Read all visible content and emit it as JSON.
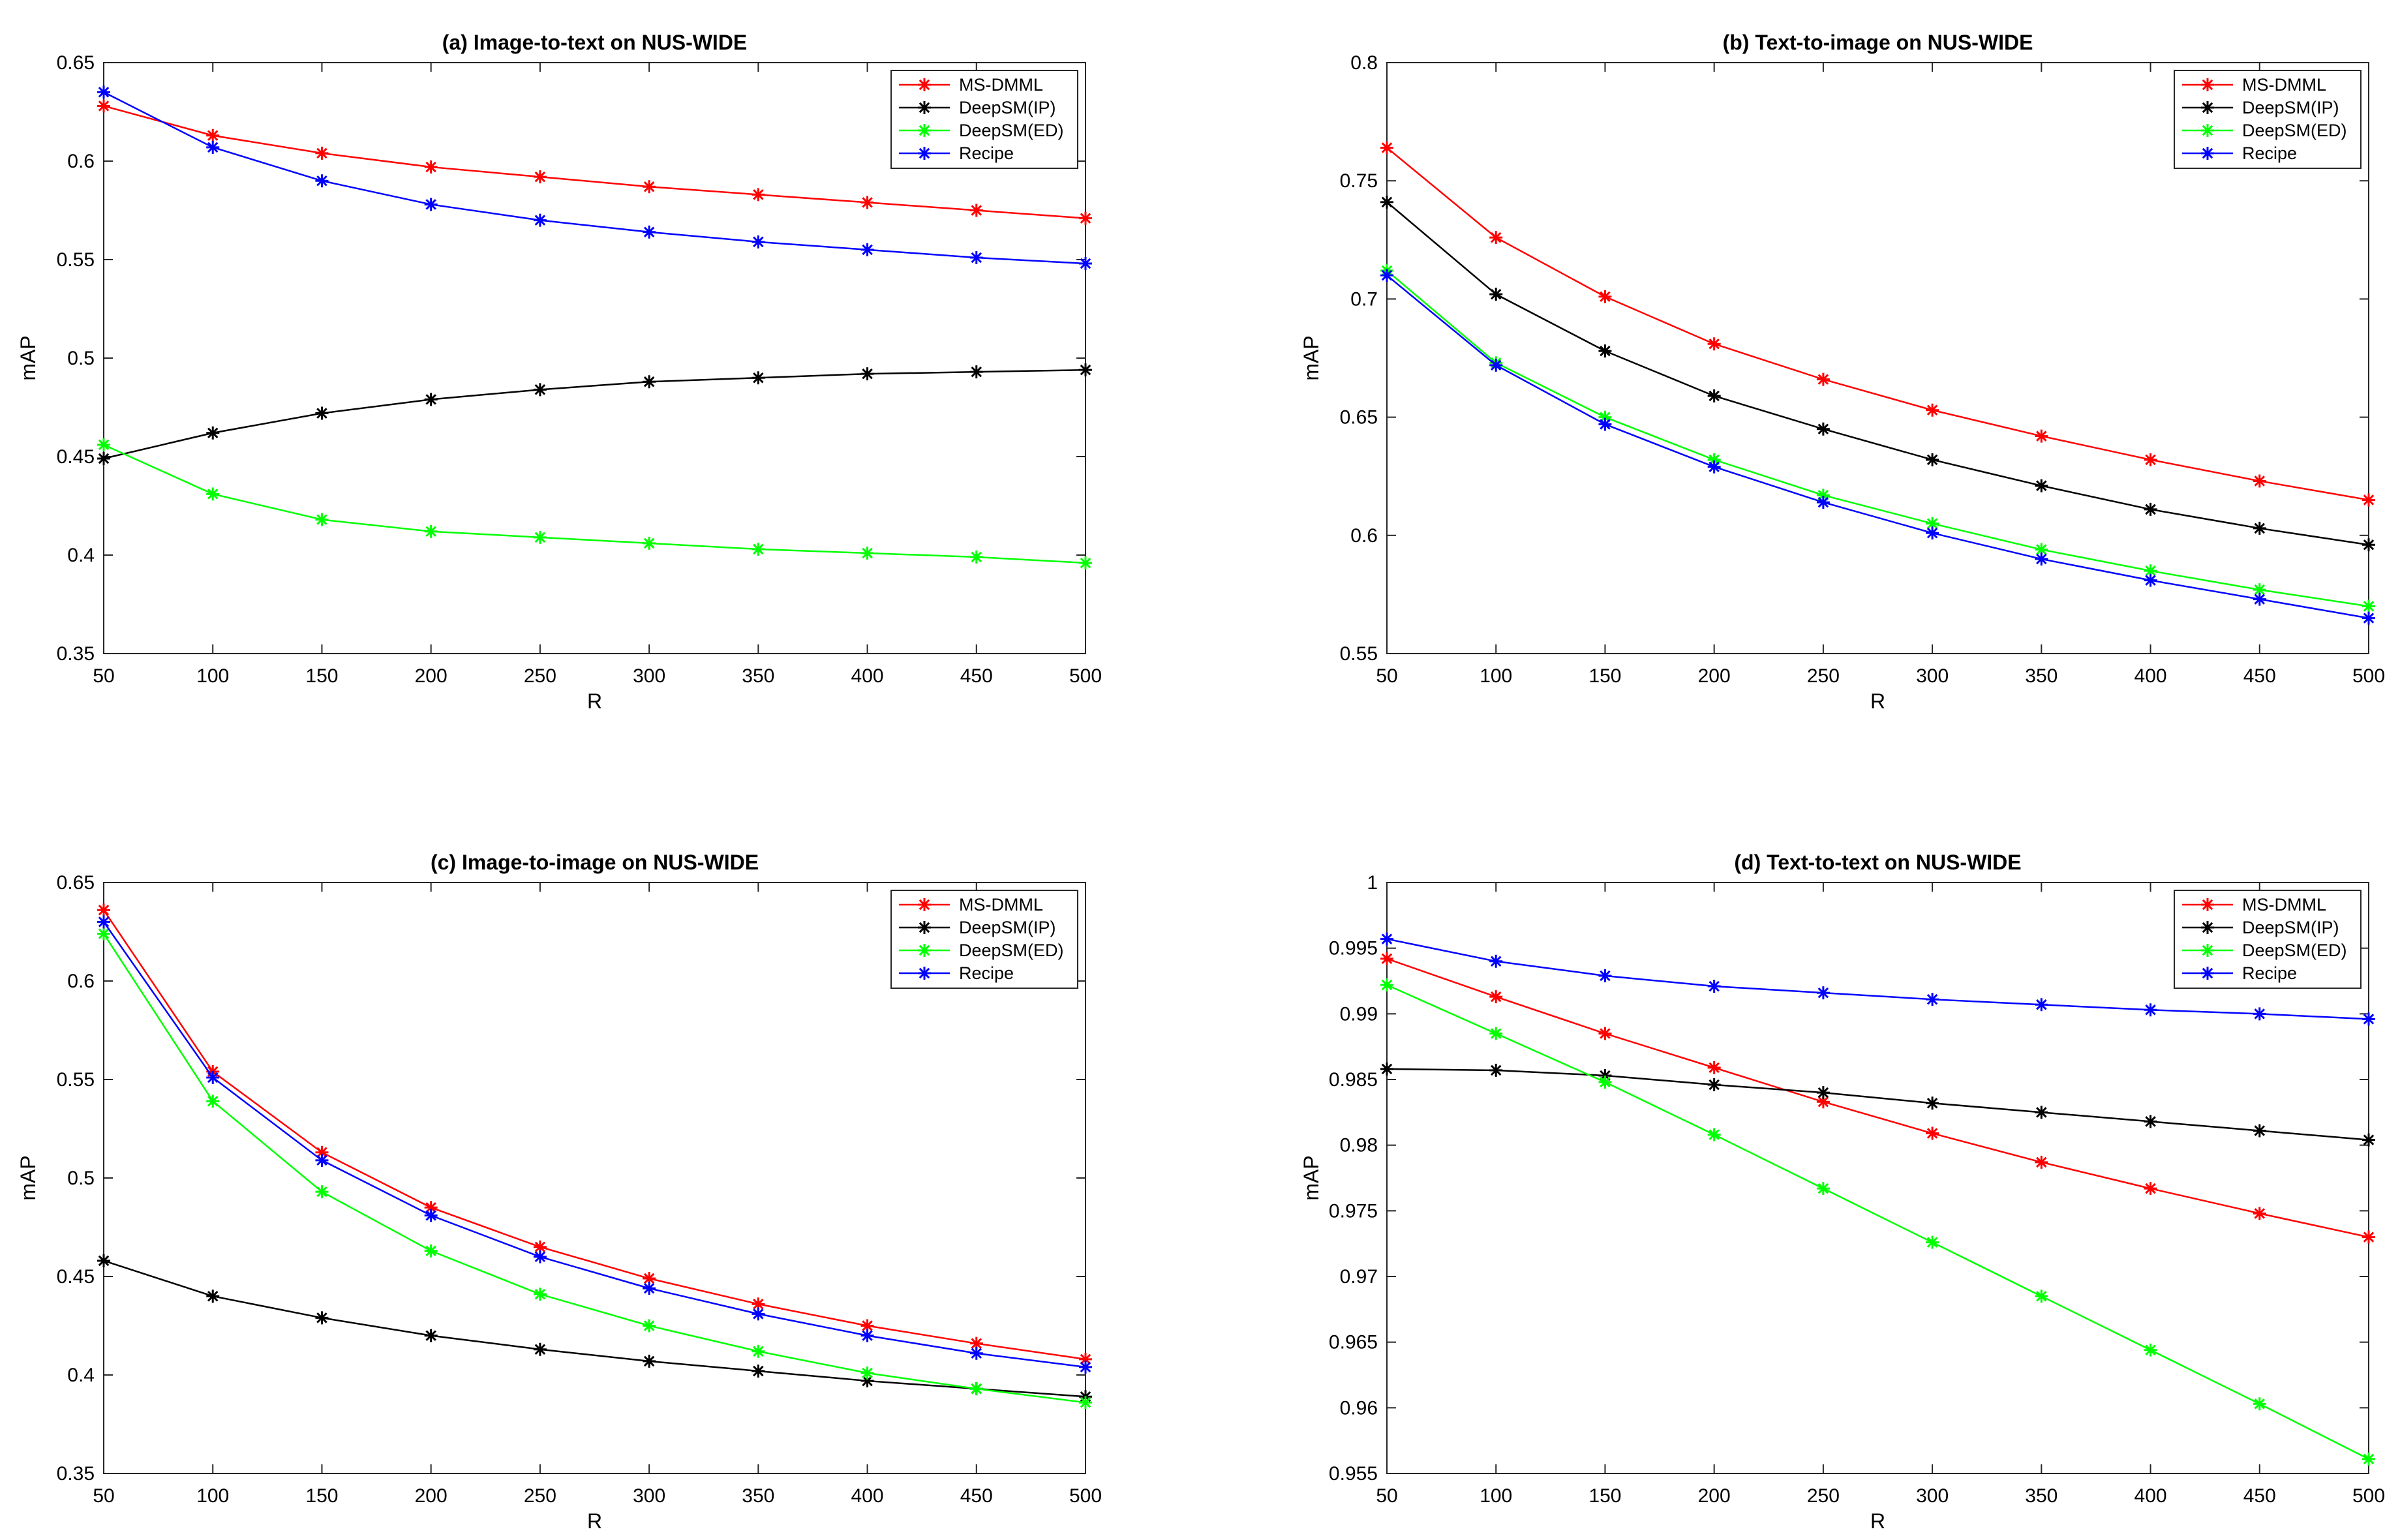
{
  "chart_data": [
    {
      "type": "line",
      "title": "(a) Image-to-text on NUS-WIDE",
      "xlabel": "R",
      "ylabel": "mAP",
      "x": [
        50,
        100,
        150,
        200,
        250,
        300,
        350,
        400,
        450,
        500
      ],
      "xlim": [
        50,
        500
      ],
      "ylim": [
        0.35,
        0.65
      ],
      "xticks": [
        "50",
        "100",
        "150",
        "200",
        "250",
        "300",
        "350",
        "400",
        "450",
        "500"
      ],
      "yticks": [
        "0.35",
        "0.4",
        "0.45",
        "0.5",
        "0.55",
        "0.6",
        "0.65"
      ],
      "legend_position": "top-right",
      "series": [
        {
          "name": "MS-DMML",
          "color": "#ff0000",
          "values": [
            0.628,
            0.613,
            0.604,
            0.597,
            0.592,
            0.587,
            0.583,
            0.579,
            0.575,
            0.571
          ]
        },
        {
          "name": "DeepSM(IP)",
          "color": "#000000",
          "values": [
            0.449,
            0.462,
            0.472,
            0.479,
            0.484,
            0.488,
            0.49,
            0.492,
            0.493,
            0.494
          ]
        },
        {
          "name": "DeepSM(ED)",
          "color": "#00ff00",
          "values": [
            0.456,
            0.431,
            0.418,
            0.412,
            0.409,
            0.406,
            0.403,
            0.401,
            0.399,
            0.396
          ]
        },
        {
          "name": "Recipe",
          "color": "#0000ff",
          "values": [
            0.635,
            0.607,
            0.59,
            0.578,
            0.57,
            0.564,
            0.559,
            0.555,
            0.551,
            0.548
          ]
        }
      ]
    },
    {
      "type": "line",
      "title": "(b) Text-to-image on NUS-WIDE",
      "xlabel": "R",
      "ylabel": "mAP",
      "x": [
        50,
        100,
        150,
        200,
        250,
        300,
        350,
        400,
        450,
        500
      ],
      "xlim": [
        50,
        500
      ],
      "ylim": [
        0.55,
        0.8
      ],
      "xticks": [
        "50",
        "100",
        "150",
        "200",
        "250",
        "300",
        "350",
        "400",
        "450",
        "500"
      ],
      "yticks": [
        "0.55",
        "0.6",
        "0.65",
        "0.7",
        "0.75",
        "0.8"
      ],
      "legend_position": "top-right",
      "series": [
        {
          "name": "MS-DMML",
          "color": "#ff0000",
          "values": [
            0.764,
            0.726,
            0.701,
            0.681,
            0.666,
            0.653,
            0.642,
            0.632,
            0.623,
            0.615
          ]
        },
        {
          "name": "DeepSM(IP)",
          "color": "#000000",
          "values": [
            0.741,
            0.702,
            0.678,
            0.659,
            0.645,
            0.632,
            0.621,
            0.611,
            0.603,
            0.596
          ]
        },
        {
          "name": "DeepSM(ED)",
          "color": "#00ff00",
          "values": [
            0.712,
            0.673,
            0.65,
            0.632,
            0.617,
            0.605,
            0.594,
            0.585,
            0.577,
            0.57
          ]
        },
        {
          "name": "Recipe",
          "color": "#0000ff",
          "values": [
            0.71,
            0.672,
            0.647,
            0.629,
            0.614,
            0.601,
            0.59,
            0.581,
            0.573,
            0.565
          ]
        }
      ]
    },
    {
      "type": "line",
      "title": "(c) Image-to-image on NUS-WIDE",
      "xlabel": "R",
      "ylabel": "mAP",
      "x": [
        50,
        100,
        150,
        200,
        250,
        300,
        350,
        400,
        450,
        500
      ],
      "xlim": [
        50,
        500
      ],
      "ylim": [
        0.35,
        0.65
      ],
      "xticks": [
        "50",
        "100",
        "150",
        "200",
        "250",
        "300",
        "350",
        "400",
        "450",
        "500"
      ],
      "yticks": [
        "0.35",
        "0.4",
        "0.45",
        "0.5",
        "0.55",
        "0.6",
        "0.65"
      ],
      "legend_position": "top-right",
      "series": [
        {
          "name": "MS-DMML",
          "color": "#ff0000",
          "values": [
            0.636,
            0.554,
            0.513,
            0.485,
            0.465,
            0.449,
            0.436,
            0.425,
            0.416,
            0.408
          ]
        },
        {
          "name": "DeepSM(IP)",
          "color": "#000000",
          "values": [
            0.458,
            0.44,
            0.429,
            0.42,
            0.413,
            0.407,
            0.402,
            0.397,
            0.393,
            0.389
          ]
        },
        {
          "name": "DeepSM(ED)",
          "color": "#00ff00",
          "values": [
            0.624,
            0.539,
            0.493,
            0.463,
            0.441,
            0.425,
            0.412,
            0.401,
            0.393,
            0.386
          ]
        },
        {
          "name": "Recipe",
          "color": "#0000ff",
          "values": [
            0.63,
            0.551,
            0.509,
            0.481,
            0.46,
            0.444,
            0.431,
            0.42,
            0.411,
            0.404
          ]
        }
      ]
    },
    {
      "type": "line",
      "title": "(d) Text-to-text on NUS-WIDE",
      "xlabel": "R",
      "ylabel": "mAP",
      "x": [
        50,
        100,
        150,
        200,
        250,
        300,
        350,
        400,
        450,
        500
      ],
      "xlim": [
        50,
        500
      ],
      "ylim": [
        0.955,
        1.0
      ],
      "xticks": [
        "50",
        "100",
        "150",
        "200",
        "250",
        "300",
        "350",
        "400",
        "450",
        "500"
      ],
      "yticks": [
        "0.955",
        "0.96",
        "0.965",
        "0.97",
        "0.975",
        "0.98",
        "0.985",
        "0.99",
        "0.995",
        "1"
      ],
      "legend_position": "top-right",
      "series": [
        {
          "name": "MS-DMML",
          "color": "#ff0000",
          "values": [
            0.9942,
            0.9913,
            0.9885,
            0.9859,
            0.9833,
            0.9809,
            0.9787,
            0.9767,
            0.9748,
            0.973
          ]
        },
        {
          "name": "DeepSM(IP)",
          "color": "#000000",
          "values": [
            0.9858,
            0.9857,
            0.9853,
            0.9846,
            0.984,
            0.9832,
            0.9825,
            0.9818,
            0.9811,
            0.9804
          ]
        },
        {
          "name": "DeepSM(ED)",
          "color": "#00ff00",
          "values": [
            0.9922,
            0.9885,
            0.9848,
            0.9808,
            0.9767,
            0.9726,
            0.9685,
            0.9644,
            0.9603,
            0.9561
          ]
        },
        {
          "name": "Recipe",
          "color": "#0000ff",
          "values": [
            0.9957,
            0.994,
            0.9929,
            0.9921,
            0.9916,
            0.9911,
            0.9907,
            0.9903,
            0.99,
            0.9896
          ]
        }
      ]
    }
  ]
}
